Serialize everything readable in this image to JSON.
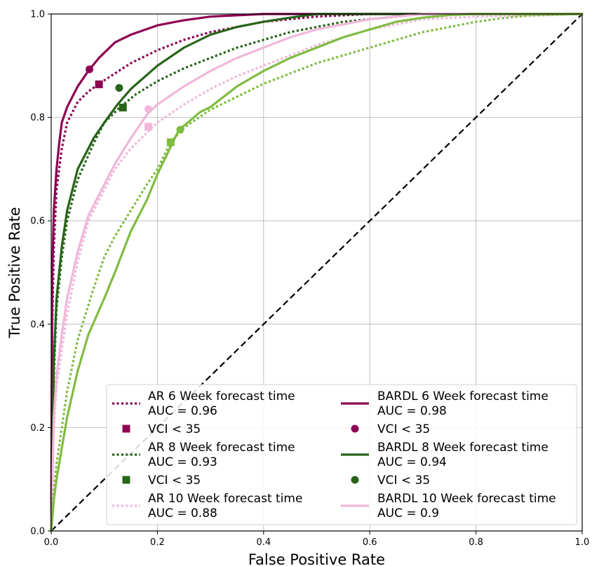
{
  "chart_data": {
    "type": "line",
    "xlabel": "False Positive Rate",
    "ylabel": "True Positive Rate",
    "xlim": [
      0,
      1
    ],
    "ylim": [
      0,
      1
    ],
    "xticks": [
      "0.0",
      "0.2",
      "0.4",
      "0.6",
      "0.8",
      "1.0"
    ],
    "yticks": [
      "0.0",
      "0.2",
      "0.4",
      "0.6",
      "0.8",
      "1.0"
    ],
    "grid": true,
    "legend_position": "lower-right",
    "colors": {
      "6": "#8e0152",
      "8": "#276419",
      "10_ar": "#f1b6da",
      "10_bardl": "#7fbc41"
    },
    "diagonal": {
      "x": [
        0,
        1
      ],
      "y": [
        0,
        1
      ],
      "color": "#000000",
      "style": "dashed"
    },
    "series": [
      {
        "key": "ar6",
        "name": "AR 6 Week forecast time",
        "auc": "AUC = 0.96",
        "color": "#8e0152",
        "style": "dotted",
        "x": [
          0,
          0.002,
          0.005,
          0.01,
          0.02,
          0.03,
          0.05,
          0.07,
          0.09,
          0.12,
          0.15,
          0.2,
          0.25,
          0.3,
          0.4,
          0.5,
          0.6,
          0.7,
          1.0
        ],
        "y": [
          0,
          0.4,
          0.55,
          0.66,
          0.74,
          0.79,
          0.83,
          0.85,
          0.865,
          0.885,
          0.905,
          0.93,
          0.95,
          0.965,
          0.985,
          0.995,
          1.0,
          1.0,
          1.0
        ],
        "marker": {
          "shape": "square",
          "x": 0.09,
          "y": 0.864
        }
      },
      {
        "key": "ar8",
        "name": "AR 8 Week forecast time",
        "auc": "AUC = 0.93",
        "color": "#276419",
        "style": "dotted",
        "x": [
          0,
          0.005,
          0.01,
          0.02,
          0.03,
          0.05,
          0.08,
          0.1,
          0.13,
          0.16,
          0.2,
          0.25,
          0.3,
          0.35,
          0.4,
          0.45,
          0.5,
          0.55,
          0.6,
          0.7,
          1.0
        ],
        "y": [
          0,
          0.3,
          0.43,
          0.53,
          0.6,
          0.68,
          0.75,
          0.79,
          0.82,
          0.845,
          0.87,
          0.895,
          0.915,
          0.935,
          0.95,
          0.965,
          0.975,
          0.985,
          0.99,
          1.0,
          1.0
        ],
        "marker": {
          "shape": "square",
          "x": 0.135,
          "y": 0.819
        }
      },
      {
        "key": "ar10",
        "name": "AR 10 Week forecast time",
        "auc": "AUC = 0.88",
        "color": "#f1b6da",
        "style": "dotted",
        "x": [
          0,
          0.005,
          0.01,
          0.02,
          0.03,
          0.05,
          0.07,
          0.1,
          0.12,
          0.15,
          0.18,
          0.2,
          0.25,
          0.3,
          0.35,
          0.4,
          0.45,
          0.5,
          0.55,
          0.6,
          0.65,
          0.7,
          0.8,
          1.0
        ],
        "y": [
          0,
          0.2,
          0.28,
          0.35,
          0.42,
          0.52,
          0.6,
          0.66,
          0.7,
          0.74,
          0.77,
          0.79,
          0.825,
          0.855,
          0.88,
          0.9,
          0.92,
          0.94,
          0.955,
          0.97,
          0.98,
          0.99,
          0.995,
          1.0
        ],
        "marker": {
          "shape": "square",
          "x": 0.183,
          "y": 0.782
        }
      },
      {
        "key": "bardl6",
        "name": "BARDL 6 Week forecast time",
        "auc": "AUC = 0.98",
        "color": "#8e0152",
        "style": "solid",
        "x": [
          0,
          0.002,
          0.005,
          0.01,
          0.015,
          0.02,
          0.03,
          0.05,
          0.07,
          0.09,
          0.12,
          0.15,
          0.2,
          0.25,
          0.3,
          0.4,
          0.5,
          1.0
        ],
        "y": [
          0,
          0.5,
          0.62,
          0.7,
          0.75,
          0.79,
          0.82,
          0.86,
          0.89,
          0.915,
          0.945,
          0.96,
          0.978,
          0.988,
          0.995,
          1.0,
          1.0,
          1.0
        ],
        "marker": {
          "shape": "circle",
          "x": 0.072,
          "y": 0.893
        }
      },
      {
        "key": "bardl8",
        "name": "BARDL 8 Week forecast time",
        "auc": "AUC = 0.94",
        "color": "#276419",
        "style": "solid",
        "x": [
          0,
          0.005,
          0.01,
          0.02,
          0.03,
          0.05,
          0.08,
          0.1,
          0.125,
          0.15,
          0.2,
          0.25,
          0.3,
          0.35,
          0.4,
          0.45,
          0.5,
          0.6,
          1.0
        ],
        "y": [
          0,
          0.33,
          0.45,
          0.55,
          0.62,
          0.7,
          0.76,
          0.79,
          0.825,
          0.855,
          0.9,
          0.935,
          0.96,
          0.975,
          0.985,
          0.993,
          1.0,
          1.0,
          1.0
        ],
        "marker": {
          "shape": "circle",
          "x": 0.128,
          "y": 0.857
        }
      },
      {
        "key": "bardl10",
        "name": "BARDL 10 Week forecast time",
        "auc": "AUC = 0.9",
        "color": "#f1b6da",
        "style": "solid",
        "x": [
          0,
          0.005,
          0.01,
          0.02,
          0.03,
          0.05,
          0.07,
          0.1,
          0.12,
          0.15,
          0.18,
          0.2,
          0.25,
          0.3,
          0.35,
          0.4,
          0.45,
          0.5,
          0.55,
          0.6,
          0.65,
          0.7,
          1.0
        ],
        "y": [
          0,
          0.22,
          0.3,
          0.38,
          0.45,
          0.54,
          0.61,
          0.67,
          0.71,
          0.76,
          0.805,
          0.825,
          0.86,
          0.89,
          0.915,
          0.935,
          0.955,
          0.97,
          0.98,
          0.99,
          0.995,
          1.0,
          1.0
        ],
        "marker": {
          "shape": "circle",
          "x": 0.183,
          "y": 0.816
        }
      },
      {
        "key": "green10_dotted",
        "name": "",
        "auc": "",
        "color": "#7fbc41",
        "style": "dotted",
        "legend": false,
        "x": [
          0,
          0.005,
          0.01,
          0.02,
          0.03,
          0.05,
          0.08,
          0.1,
          0.12,
          0.15,
          0.18,
          0.2,
          0.225,
          0.25,
          0.3,
          0.35,
          0.4,
          0.45,
          0.5,
          0.55,
          0.6,
          0.65,
          0.7,
          0.75,
          0.8,
          0.85,
          0.9,
          1.0
        ],
        "y": [
          0,
          0.08,
          0.13,
          0.2,
          0.27,
          0.37,
          0.47,
          0.53,
          0.57,
          0.62,
          0.67,
          0.7,
          0.752,
          0.78,
          0.815,
          0.84,
          0.865,
          0.885,
          0.905,
          0.92,
          0.935,
          0.95,
          0.965,
          0.975,
          0.985,
          0.992,
          0.997,
          1.0
        ],
        "marker": {
          "shape": "square",
          "x": 0.225,
          "y": 0.752
        }
      },
      {
        "key": "green10_solid",
        "name": "",
        "auc": "",
        "color": "#7fbc41",
        "style": "solid",
        "legend": false,
        "x": [
          0,
          0.005,
          0.01,
          0.02,
          0.03,
          0.05,
          0.07,
          0.1,
          0.12,
          0.15,
          0.18,
          0.2,
          0.24,
          0.28,
          0.3,
          0.35,
          0.4,
          0.45,
          0.5,
          0.55,
          0.6,
          0.65,
          0.7,
          0.75,
          0.8,
          1.0
        ],
        "y": [
          0,
          0.06,
          0.1,
          0.16,
          0.22,
          0.31,
          0.38,
          0.45,
          0.5,
          0.58,
          0.64,
          0.69,
          0.775,
          0.81,
          0.82,
          0.86,
          0.89,
          0.915,
          0.935,
          0.955,
          0.97,
          0.985,
          0.993,
          0.998,
          1.0,
          1.0
        ],
        "marker": {
          "shape": "circle",
          "x": 0.243,
          "y": 0.776
        }
      }
    ],
    "legend": {
      "left": [
        {
          "kind": "line",
          "color": "#8e0152",
          "style": "dotted",
          "line1": "AR 6 Week forecast time",
          "line2": "AUC = 0.96"
        },
        {
          "kind": "square",
          "color": "#8e0152",
          "line1": "VCI < 35",
          "line2": ""
        },
        {
          "kind": "line",
          "color": "#276419",
          "style": "dotted",
          "line1": "AR 8 Week forecast time",
          "line2": "AUC = 0.93"
        },
        {
          "kind": "square",
          "color": "#276419",
          "line1": "VCI < 35",
          "line2": ""
        },
        {
          "kind": "line",
          "color": "#f1b6da",
          "style": "dotted",
          "line1": "AR 10 Week forecast time",
          "line2": "AUC = 0.88"
        }
      ],
      "right": [
        {
          "kind": "line",
          "color": "#8e0152",
          "style": "solid",
          "line1": "BARDL 6 Week forecast time",
          "line2": "AUC = 0.98"
        },
        {
          "kind": "circle",
          "color": "#8e0152",
          "line1": "VCI < 35",
          "line2": ""
        },
        {
          "kind": "line",
          "color": "#276419",
          "style": "solid",
          "line1": "BARDL 8 Week forecast time",
          "line2": "AUC = 0.94"
        },
        {
          "kind": "circle",
          "color": "#276419",
          "line1": "VCI < 35",
          "line2": ""
        },
        {
          "kind": "line",
          "color": "#f1b6da",
          "style": "solid",
          "line1": "BARDL 10 Week forecast time",
          "line2": "AUC = 0.9"
        }
      ]
    }
  }
}
